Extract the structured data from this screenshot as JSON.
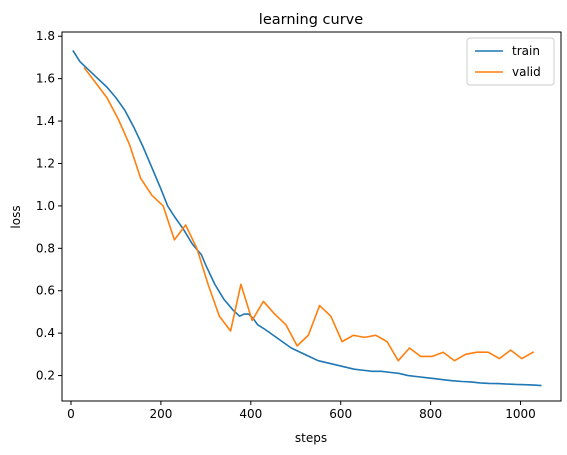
{
  "chart_data": {
    "type": "line",
    "title": "learning curve",
    "xlabel": "steps",
    "ylabel": "loss",
    "xlim": [
      -20,
      1090
    ],
    "ylim": [
      0.08,
      1.82
    ],
    "xticks": [
      0,
      200,
      400,
      600,
      800,
      1000
    ],
    "yticks": [
      0.2,
      0.4,
      0.6,
      0.8,
      1.0,
      1.2,
      1.4,
      1.6,
      1.8
    ],
    "xtick_labels": [
      "0",
      "200",
      "400",
      "600",
      "800",
      "1000"
    ],
    "ytick_labels": [
      "0.2",
      "0.4",
      "0.6",
      "0.8",
      "1.0",
      "1.2",
      "1.4",
      "1.6",
      "1.8"
    ],
    "grid": false,
    "legend": {
      "placement": "top-right"
    },
    "series": [
      {
        "name": "train",
        "color": "#1f77b4",
        "x": [
          5,
          20,
          40,
          60,
          80,
          100,
          120,
          140,
          160,
          180,
          200,
          215,
          230,
          250,
          270,
          290,
          300,
          320,
          340,
          360,
          375,
          385,
          395,
          405,
          415,
          430,
          450,
          470,
          490,
          510,
          530,
          550,
          570,
          590,
          610,
          630,
          650,
          670,
          690,
          710,
          730,
          750,
          770,
          790,
          810,
          830,
          850,
          870,
          890,
          910,
          930,
          950,
          970,
          990,
          1010,
          1030,
          1045
        ],
        "y": [
          1.73,
          1.68,
          1.64,
          1.6,
          1.56,
          1.51,
          1.45,
          1.37,
          1.28,
          1.18,
          1.08,
          1.0,
          0.95,
          0.89,
          0.82,
          0.77,
          0.72,
          0.63,
          0.56,
          0.51,
          0.48,
          0.49,
          0.49,
          0.47,
          0.44,
          0.42,
          0.39,
          0.36,
          0.33,
          0.31,
          0.29,
          0.27,
          0.26,
          0.25,
          0.24,
          0.23,
          0.225,
          0.22,
          0.22,
          0.215,
          0.21,
          0.2,
          0.195,
          0.19,
          0.185,
          0.18,
          0.175,
          0.172,
          0.17,
          0.165,
          0.163,
          0.162,
          0.16,
          0.158,
          0.157,
          0.155,
          0.153
        ]
      },
      {
        "name": "valid",
        "color": "#ff7f0e",
        "x": [
          30,
          55,
          80,
          105,
          130,
          155,
          180,
          205,
          230,
          255,
          280,
          305,
          330,
          355,
          378,
          403,
          428,
          453,
          478,
          503,
          528,
          553,
          578,
          603,
          628,
          653,
          678,
          703,
          728,
          753,
          778,
          803,
          828,
          853,
          878,
          903,
          928,
          953,
          978,
          1003,
          1028
        ],
        "y": [
          1.65,
          1.58,
          1.51,
          1.41,
          1.29,
          1.13,
          1.05,
          1.0,
          0.84,
          0.91,
          0.8,
          0.63,
          0.48,
          0.41,
          0.63,
          0.46,
          0.55,
          0.49,
          0.44,
          0.34,
          0.39,
          0.53,
          0.48,
          0.36,
          0.39,
          0.38,
          0.39,
          0.36,
          0.27,
          0.33,
          0.29,
          0.29,
          0.31,
          0.27,
          0.3,
          0.31,
          0.31,
          0.28,
          0.32,
          0.28,
          0.31
        ]
      }
    ]
  }
}
